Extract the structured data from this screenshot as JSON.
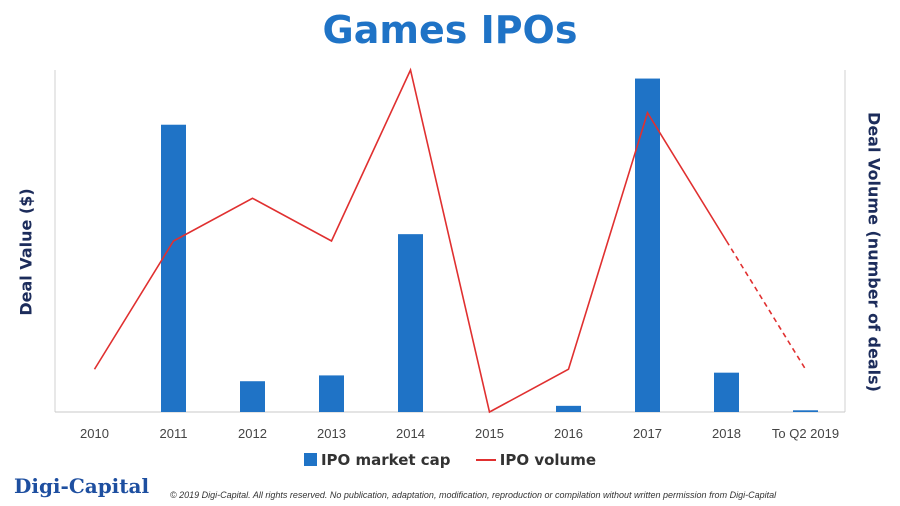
{
  "title": "Games IPOs",
  "y_left_label": "Deal Value ($)",
  "y_right_label": "Deal Volume (number of deals)",
  "logo": "Digi-Capital",
  "footer": "© 2019 Digi-Capital. All rights reserved. No publication, adaptation, modification, reproduction or compilation without written permission from Digi-Capital",
  "colors": {
    "bar": "#1f73c6",
    "line": "#e03030",
    "title": "#1f73c6",
    "axis_label": "#1c2c5b"
  },
  "chart_data": {
    "type": "bar",
    "title": "Games IPOs",
    "categories": [
      "2010",
      "2011",
      "2012",
      "2013",
      "2014",
      "2015",
      "2016",
      "2017",
      "2018",
      "To Q2 2019"
    ],
    "series": [
      {
        "name": "IPO market cap",
        "type": "bar",
        "axis": "left",
        "values": [
          0,
          0.84,
          0.09,
          0.107,
          0.52,
          0,
          0.018,
          0.975,
          0.115,
          0.005
        ]
      },
      {
        "name": "IPO volume",
        "type": "line",
        "axis": "right",
        "values": [
          0.125,
          0.5,
          0.625,
          0.5,
          1.0,
          0,
          0.125,
          0.875,
          0.5,
          0.125
        ],
        "dashed_from_index": 8
      }
    ],
    "xlabel": "",
    "ylabel": "Deal Value ($)",
    "ylabel_right": "Deal Volume (number of deals)",
    "ylim": [
      0,
      1
    ],
    "y_tick_labels": "none",
    "grid": false,
    "legend": "bottom-center"
  }
}
